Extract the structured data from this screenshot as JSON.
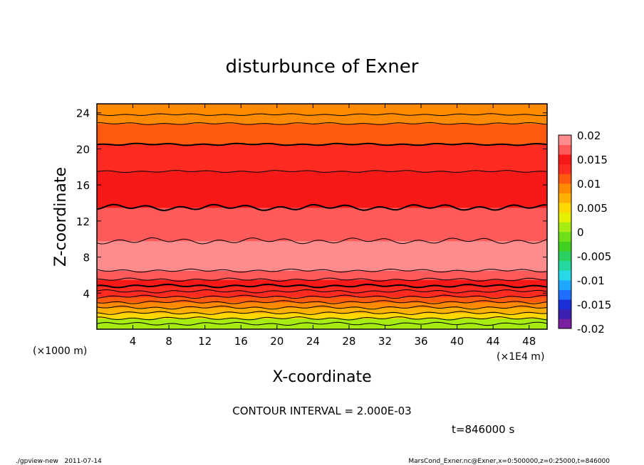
{
  "chart_data": {
    "type": "heatmap",
    "title": "disturbunce of Exner",
    "xlabel": "X-coordinate",
    "ylabel": "Z-coordinate",
    "x_unit_left": "(×1000 m)",
    "x_unit_right": "(×1E4 m)",
    "xlim": [
      0,
      50
    ],
    "ylim": [
      0,
      25
    ],
    "xticks": [
      "4",
      "8",
      "12",
      "16",
      "20",
      "24",
      "28",
      "32",
      "36",
      "40",
      "44",
      "48"
    ],
    "yticks": [
      "4",
      "8",
      "12",
      "16",
      "20",
      "24"
    ],
    "contour_interval_text": "CONTOUR INTERVAL = 2.000E-03",
    "time_text": "t=846000 s",
    "footer_left": "./gpview-new   2011-07-14",
    "footer_right": "MarsCond_Exner.nc@Exner,x=0:500000,z=0:25000,t=846000",
    "colorbar_labels": [
      "0.02",
      "0.015",
      "0.01",
      "0.005",
      "0",
      "-0.005",
      "-0.01",
      "-0.015",
      "-0.02"
    ],
    "colorbar_range": [
      -0.02,
      0.02
    ],
    "colorbar_colors": [
      "#7a1fa0",
      "#3a1fb0",
      "#1a2fd8",
      "#1f6fff",
      "#1ea8ff",
      "#27d8e8",
      "#22d8a0",
      "#2ad060",
      "#40d020",
      "#6ee01a",
      "#a6ec12",
      "#e4f000",
      "#ffd800",
      "#ffb000",
      "#ff8a00",
      "#ff5a10",
      "#ff2a20",
      "#f71818",
      "#ff5a5a",
      "#ff8c8c"
    ],
    "profile": [
      {
        "z": 0.0,
        "value": -0.001
      },
      {
        "z": 0.6,
        "value": 0.001
      },
      {
        "z": 1.2,
        "value": 0.003
      },
      {
        "z": 1.8,
        "value": 0.005
      },
      {
        "z": 2.4,
        "value": 0.008
      },
      {
        "z": 3.0,
        "value": 0.01
      },
      {
        "z": 3.6,
        "value": 0.012
      },
      {
        "z": 4.2,
        "value": 0.013
      },
      {
        "z": 4.8,
        "value": 0.014
      },
      {
        "z": 5.5,
        "value": 0.016
      },
      {
        "z": 6.5,
        "value": 0.018
      },
      {
        "z": 8.0,
        "value": 0.019
      },
      {
        "z": 9.8,
        "value": 0.018
      },
      {
        "z": 11.5,
        "value": 0.017
      },
      {
        "z": 13.5,
        "value": 0.016
      },
      {
        "z": 15.5,
        "value": 0.015
      },
      {
        "z": 17.5,
        "value": 0.014
      },
      {
        "z": 19.0,
        "value": 0.013
      },
      {
        "z": 20.5,
        "value": 0.012
      },
      {
        "z": 21.8,
        "value": 0.011
      },
      {
        "z": 22.8,
        "value": 0.01
      },
      {
        "z": 23.8,
        "value": 0.009
      },
      {
        "z": 25.0,
        "value": 0.008
      }
    ]
  }
}
